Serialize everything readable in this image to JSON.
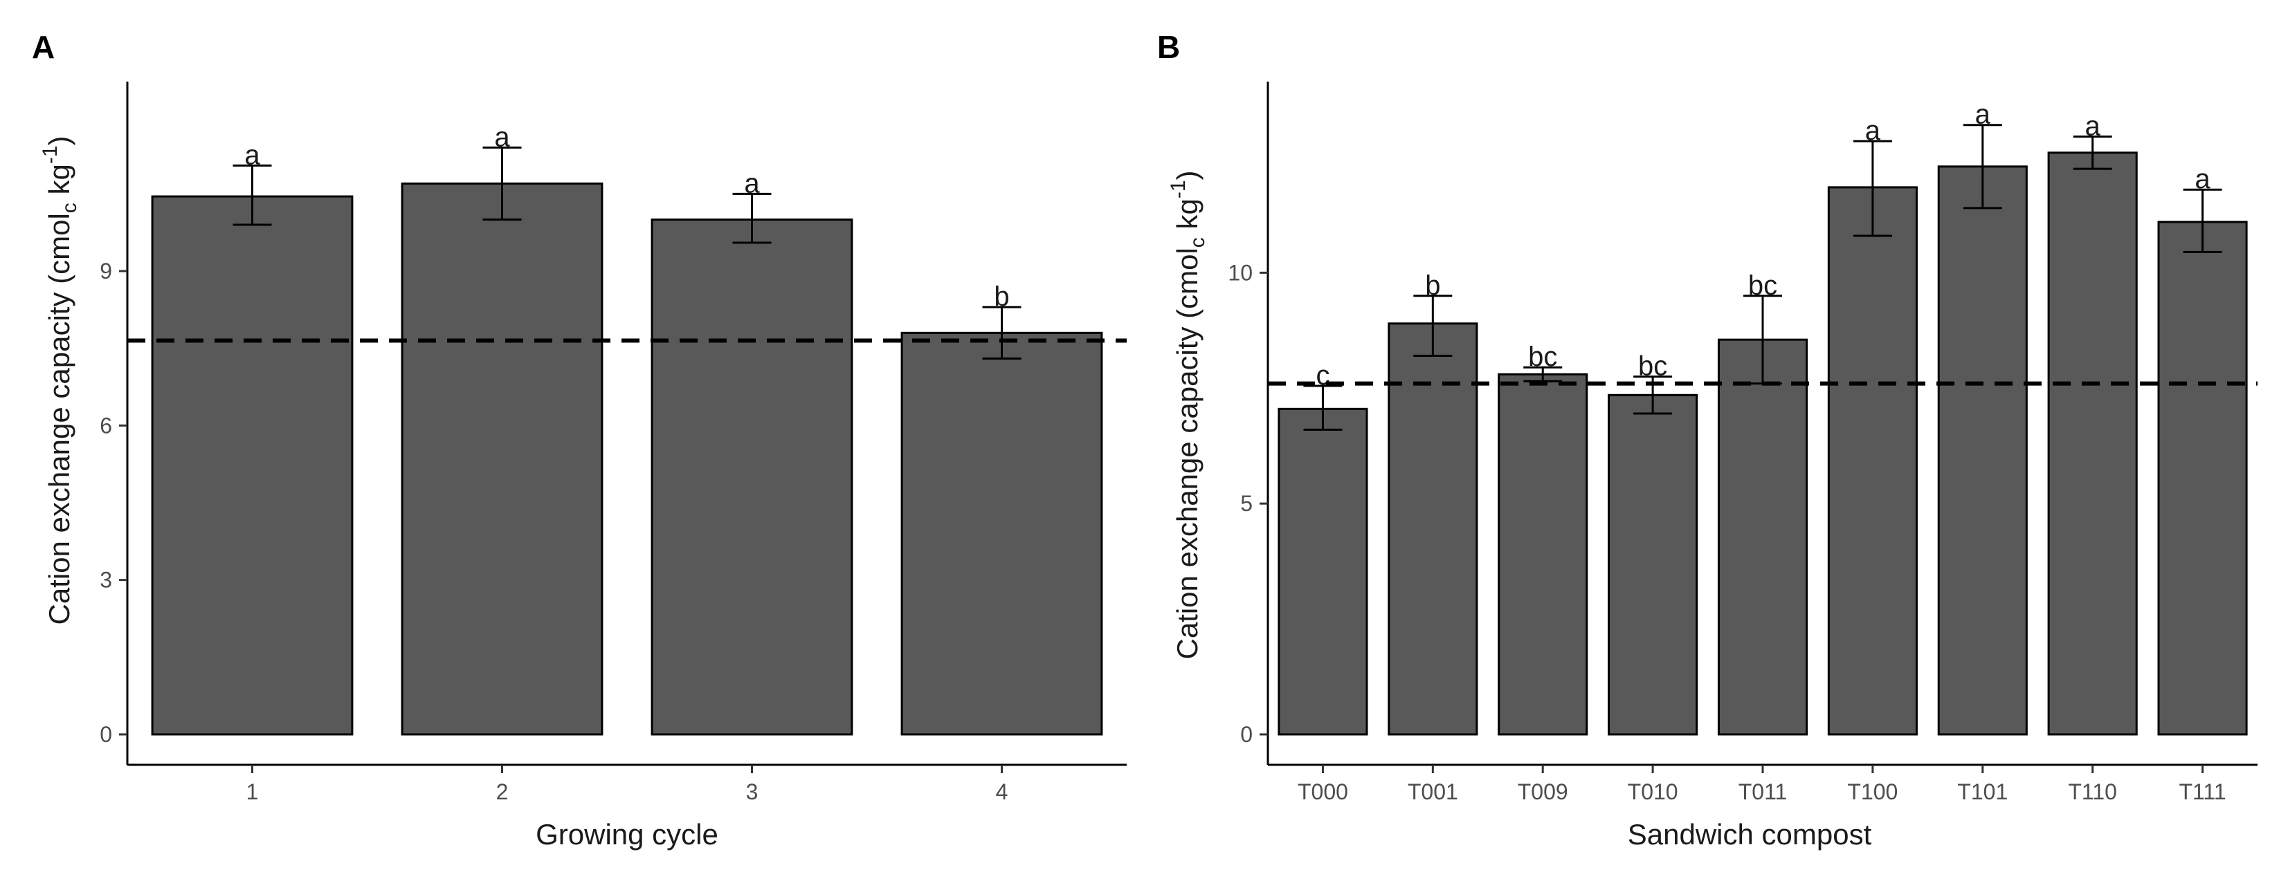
{
  "chart_data": [
    {
      "type": "bar",
      "panel": "A",
      "xlabel": "Growing cycle",
      "ylabel": "Cation exchange capacity (cmol",
      "ylabel_subscript": "c",
      "ylabel_unit": " kg",
      "ylabel_superscript": "-1",
      "ylabel_close": ")",
      "categories": [
        "1",
        "2",
        "3",
        "4"
      ],
      "values": [
        10.45,
        10.7,
        10.0,
        7.8
      ],
      "error_low": [
        9.9,
        10.0,
        9.55,
        7.3
      ],
      "error_high": [
        11.05,
        11.4,
        10.5,
        8.3
      ],
      "letters": [
        "a",
        "a",
        "a",
        "b"
      ],
      "reference_line": 7.65,
      "ylim": [
        0,
        12.6
      ],
      "yticks": [
        0,
        3,
        6,
        9
      ],
      "ytick_labels": [
        "0",
        "3",
        "6",
        "9"
      ]
    },
    {
      "type": "bar",
      "panel": "B",
      "xlabel": "Sandwich compost",
      "ylabel": "Cation exchange capacity (cmol",
      "ylabel_subscript": "c",
      "ylabel_unit": " kg",
      "ylabel_superscript": "-1",
      "ylabel_close": ")",
      "categories": [
        "T000",
        "T001",
        "T009",
        "T010",
        "T011",
        "T100",
        "T101",
        "T110",
        "T111"
      ],
      "values": [
        7.05,
        8.9,
        7.8,
        7.35,
        8.55,
        11.85,
        12.3,
        12.6,
        11.1
      ],
      "error_low": [
        6.6,
        8.2,
        7.65,
        6.95,
        7.6,
        10.8,
        11.4,
        12.25,
        10.45
      ],
      "error_high": [
        7.55,
        9.5,
        7.95,
        7.75,
        9.5,
        12.85,
        13.2,
        12.95,
        11.8
      ],
      "letters": [
        "c",
        "b",
        "bc",
        "bc",
        "bc",
        "a",
        "a",
        "a",
        "a"
      ],
      "reference_line": 7.6,
      "ylim": [
        0,
        14.05
      ],
      "yticks": [
        0,
        5,
        10
      ],
      "ytick_labels": [
        "0",
        "5",
        "10"
      ]
    }
  ]
}
